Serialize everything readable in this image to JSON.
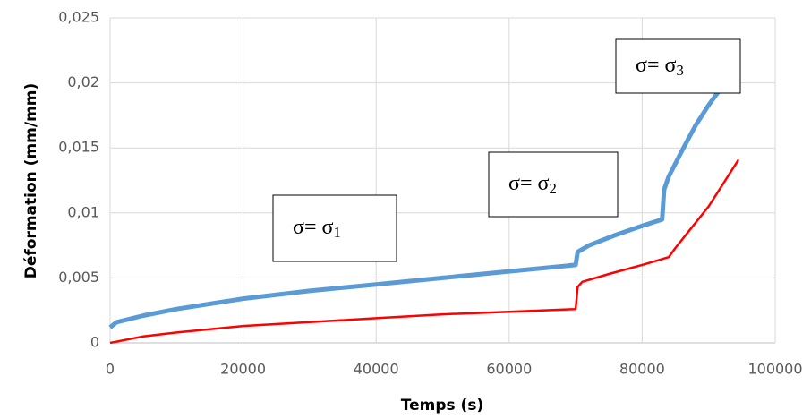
{
  "chart_data": {
    "type": "line",
    "xlabel": "Temps (s)",
    "ylabel": "Déformation (mm/mm)",
    "xlim": [
      0,
      100000
    ],
    "xticks": [
      0,
      20000,
      40000,
      60000,
      80000,
      100000
    ],
    "ylim": [
      0,
      0.025
    ],
    "yticks": [
      0,
      {
        "value": 0.005,
        "label": "0,005"
      },
      {
        "value": 0.01,
        "label": "0,01"
      },
      {
        "value": 0.015,
        "label": "0,015"
      },
      {
        "value": 0.02,
        "label": "0,02"
      },
      {
        "value": 0.025,
        "label": "0,025"
      }
    ],
    "grid": true,
    "series": [
      {
        "color": "#5b9bd5",
        "x": [
          0,
          1000,
          5000,
          10000,
          20000,
          30000,
          40000,
          50000,
          60000,
          70000,
          70300,
          72000,
          76000,
          80000,
          83000,
          83300,
          84000,
          86000,
          88000,
          90000,
          92000
        ],
        "values": [
          0.0012,
          0.0016,
          0.0021,
          0.0026,
          0.0034,
          0.004,
          0.0045,
          0.005,
          0.0055,
          0.006,
          0.007,
          0.0075,
          0.0083,
          0.009,
          0.0095,
          0.0118,
          0.0128,
          0.0148,
          0.0167,
          0.0183,
          0.0197
        ]
      },
      {
        "color": "#ff0000",
        "x": [
          0,
          5000,
          10000,
          20000,
          30000,
          40000,
          50000,
          60000,
          70000,
          70300,
          71000,
          75000,
          80000,
          84000,
          85000,
          90000,
          94500
        ],
        "values": [
          0,
          0.0005,
          0.0008,
          0.0013,
          0.0016,
          0.0019,
          0.0022,
          0.0024,
          0.0026,
          0.0043,
          0.0047,
          0.0053,
          0.006,
          0.0066,
          0.0073,
          0.0105,
          0.0141
        ]
      }
    ],
    "annotations": [
      {
        "text": "σ= σ",
        "subscript": "1"
      },
      {
        "text": "σ= σ",
        "subscript": "2"
      },
      {
        "text": "σ= σ",
        "subscript": "3"
      }
    ]
  }
}
